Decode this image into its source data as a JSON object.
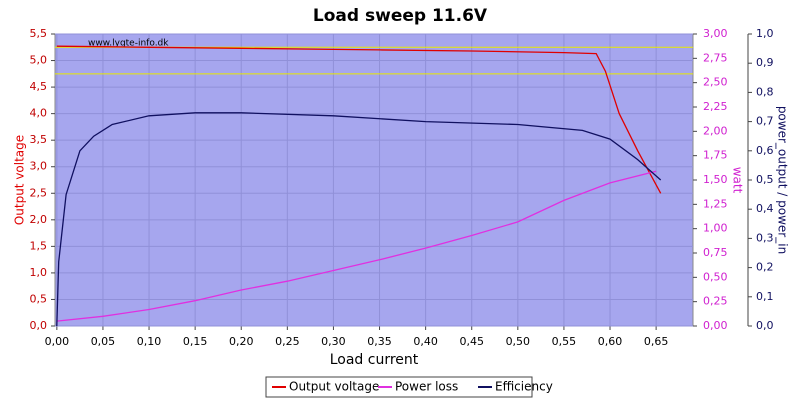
{
  "chart_data": {
    "type": "line",
    "title": "Load sweep 11.6V",
    "watermark": "www.lygte-info.dk",
    "xlabel": "Load current",
    "ylabel": "Output voltage",
    "y2label": "watt",
    "y3label": "power_output / power_in",
    "xlim": [
      -0.002,
      0.69
    ],
    "ylim": [
      0,
      5.5
    ],
    "y2lim": [
      0,
      3
    ],
    "y3lim": [
      0,
      1
    ],
    "xticks": [
      {
        "value": 0,
        "label": "0,00"
      },
      {
        "value": 0.05,
        "label": "0,05"
      },
      {
        "value": 0.1,
        "label": "0,10"
      },
      {
        "value": 0.15,
        "label": "0,15"
      },
      {
        "value": 0.2,
        "label": "0,20"
      },
      {
        "value": 0.25,
        "label": "0,25"
      },
      {
        "value": 0.3,
        "label": "0,30"
      },
      {
        "value": 0.35,
        "label": "0,35"
      },
      {
        "value": 0.4,
        "label": "0,40"
      },
      {
        "value": 0.45,
        "label": "0,45"
      },
      {
        "value": 0.5,
        "label": "0,50"
      },
      {
        "value": 0.55,
        "label": "0,55"
      },
      {
        "value": 0.6,
        "label": "0,60"
      },
      {
        "value": 0.65,
        "label": "0,65"
      }
    ],
    "yticks": [
      {
        "value": 0,
        "label": "0,0"
      },
      {
        "value": 0.5,
        "label": "0,5"
      },
      {
        "value": 1,
        "label": "1,0"
      },
      {
        "value": 1.5,
        "label": "1,5"
      },
      {
        "value": 2,
        "label": "2,0"
      },
      {
        "value": 2.5,
        "label": "2,5"
      },
      {
        "value": 3,
        "label": "3,0"
      },
      {
        "value": 3.5,
        "label": "3,5"
      },
      {
        "value": 4,
        "label": "4,0"
      },
      {
        "value": 4.5,
        "label": "4,5"
      },
      {
        "value": 5,
        "label": "5,0"
      },
      {
        "value": 5.5,
        "label": "5,5"
      }
    ],
    "y2ticks": [
      {
        "value": 0,
        "label": "0,00"
      },
      {
        "value": 0.25,
        "label": "0,25"
      },
      {
        "value": 0.5,
        "label": "0,50"
      },
      {
        "value": 0.75,
        "label": "0,75"
      },
      {
        "value": 1,
        "label": "1,00"
      },
      {
        "value": 1.25,
        "label": "1,25"
      },
      {
        "value": 1.5,
        "label": "1,50"
      },
      {
        "value": 1.75,
        "label": "1,75"
      },
      {
        "value": 2,
        "label": "2,00"
      },
      {
        "value": 2.25,
        "label": "2,25"
      },
      {
        "value": 2.5,
        "label": "2,50"
      },
      {
        "value": 2.75,
        "label": "2,75"
      },
      {
        "value": 3,
        "label": "3,00"
      }
    ],
    "y3ticks": [
      {
        "value": 0,
        "label": "0,0"
      },
      {
        "value": 0.1,
        "label": "0,1"
      },
      {
        "value": 0.2,
        "label": "0,2"
      },
      {
        "value": 0.3,
        "label": "0,3"
      },
      {
        "value": 0.4,
        "label": "0,4"
      },
      {
        "value": 0.5,
        "label": "0,5"
      },
      {
        "value": 0.6,
        "label": "0,6"
      },
      {
        "value": 0.7,
        "label": "0,7"
      },
      {
        "value": 0.8,
        "label": "0,8"
      },
      {
        "value": 0.9,
        "label": "0,9"
      },
      {
        "value": 1,
        "label": "1,0"
      }
    ],
    "grid": true,
    "reference_lines": [
      5.25,
      4.75
    ],
    "reference_color": "#e8e800",
    "series": [
      {
        "name": "Output voltage",
        "color": "#e00000",
        "axis": "y",
        "x": [
          0,
          0.05,
          0.1,
          0.2,
          0.3,
          0.35,
          0.45,
          0.55,
          0.585,
          0.595,
          0.61,
          0.63,
          0.655
        ],
        "values": [
          5.27,
          5.26,
          5.25,
          5.23,
          5.21,
          5.2,
          5.18,
          5.15,
          5.13,
          4.8,
          4.0,
          3.3,
          2.5
        ]
      },
      {
        "name": "Power loss",
        "color": "#e030e0",
        "axis": "y2",
        "x": [
          0,
          0.05,
          0.1,
          0.15,
          0.2,
          0.25,
          0.3,
          0.35,
          0.4,
          0.45,
          0.5,
          0.55,
          0.6,
          0.65
        ],
        "values": [
          0.05,
          0.1,
          0.17,
          0.26,
          0.37,
          0.46,
          0.57,
          0.68,
          0.8,
          0.93,
          1.07,
          1.29,
          1.47,
          1.59
        ]
      },
      {
        "name": "Efficiency",
        "color": "#101060",
        "axis": "y3",
        "x": [
          0,
          0.002,
          0.01,
          0.025,
          0.04,
          0.06,
          0.1,
          0.15,
          0.2,
          0.3,
          0.4,
          0.5,
          0.57,
          0.6,
          0.63,
          0.655
        ],
        "values": [
          0,
          0.22,
          0.45,
          0.6,
          0.65,
          0.69,
          0.72,
          0.73,
          0.73,
          0.72,
          0.7,
          0.69,
          0.67,
          0.64,
          0.57,
          0.5
        ]
      }
    ]
  }
}
